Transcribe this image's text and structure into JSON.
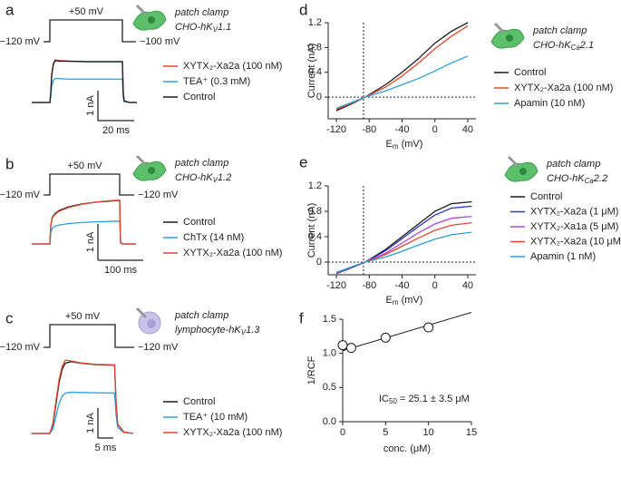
{
  "chart_data": [
    {
      "type": "trace",
      "label": "a",
      "protocol": {
        "step": "+50 mV",
        "hold": "−120 mV",
        "return": "−100 mV"
      },
      "method": "patch clamp",
      "cell": [
        "CHO-hK",
        "V",
        "1.1"
      ],
      "scalebar": {
        "y": {
          "value": 1,
          "label": "1 nA"
        },
        "x": {
          "value": 20,
          "label": "20 ms"
        }
      },
      "x": [
        -10,
        0,
        0.5,
        1,
        2,
        3,
        5,
        10,
        20,
        30,
        40,
        40.5,
        41,
        44,
        48
      ],
      "series": [
        {
          "name": "XYTX₂-Xa2a (100 nM)",
          "color": "#e8452c",
          "values": [
            0,
            0,
            0.3,
            0.95,
            1.32,
            1.42,
            1.4,
            1.38,
            1.37,
            1.37,
            1.37,
            0.3,
            0.05,
            0,
            0
          ]
        },
        {
          "name": "TEA⁺ (0.3 mM)",
          "color": "#2a9fe0",
          "values": [
            0,
            0,
            0.2,
            0.55,
            0.75,
            0.8,
            0.8,
            0.78,
            0.78,
            0.78,
            0.78,
            0.15,
            0.03,
            0,
            0
          ]
        },
        {
          "name": "Control",
          "color": "#1a1a1a",
          "values": [
            0,
            0,
            0.3,
            0.9,
            1.3,
            1.4,
            1.38,
            1.38,
            1.36,
            1.36,
            1.36,
            0.3,
            0.05,
            0,
            0
          ]
        }
      ]
    },
    {
      "type": "trace",
      "label": "b",
      "protocol": {
        "step": "+50 mV",
        "hold": "−120 mV",
        "return": "−120 mV"
      },
      "method": "patch clamp",
      "cell": [
        "CHO-hK",
        "V",
        "1.2"
      ],
      "scalebar": {
        "y": {
          "value": 1,
          "label": "1 nA"
        },
        "x": {
          "value": 100,
          "label": "100 ms"
        }
      },
      "x": [
        -40,
        0,
        2,
        5,
        10,
        20,
        40,
        70,
        100,
        130,
        154,
        156,
        160,
        190
      ],
      "series": [
        {
          "name": "Control",
          "color": "#1a1a1a",
          "values": [
            0,
            0,
            0.5,
            0.72,
            0.82,
            0.92,
            1.02,
            1.1,
            1.15,
            1.18,
            1.2,
            0.05,
            0,
            0
          ]
        },
        {
          "name": "ChTx (14 nM)",
          "color": "#2a9fe0",
          "values": [
            0,
            0,
            0.3,
            0.43,
            0.48,
            0.52,
            0.56,
            0.59,
            0.61,
            0.62,
            0.63,
            0.02,
            0,
            0
          ]
        },
        {
          "name": "XYTX₂-Xa2a (100 nM)",
          "color": "#e8452c",
          "values": [
            0,
            0,
            0.5,
            0.7,
            0.8,
            0.9,
            1.0,
            1.09,
            1.15,
            1.19,
            1.21,
            0.05,
            0,
            0
          ]
        }
      ]
    },
    {
      "type": "trace",
      "label": "c",
      "protocol": {
        "step": "+50 mV",
        "hold": "−120 mV",
        "return": "−120 mV"
      },
      "method": "patch clamp",
      "cell": [
        "lymphocyte-hK",
        "V",
        "1.3"
      ],
      "scalebar": {
        "y": {
          "value": 1,
          "label": "1 nA"
        },
        "x": {
          "value": 5,
          "label": "5 ms"
        }
      },
      "x": [
        -6,
        0,
        1,
        2,
        3,
        4,
        5,
        7,
        10,
        15,
        21,
        21.5,
        22,
        24,
        27
      ],
      "series": [
        {
          "name": "Control",
          "color": "#1a1a1a",
          "values": [
            0,
            0,
            0.3,
            1.0,
            1.7,
            2.15,
            2.35,
            2.4,
            2.35,
            2.3,
            2.28,
            1.0,
            0.3,
            0.05,
            0
          ]
        },
        {
          "name": "TEA⁺ (10 mM)",
          "color": "#2a9fe0",
          "values": [
            0,
            0,
            0.15,
            0.6,
            1.0,
            1.25,
            1.35,
            1.38,
            1.37,
            1.36,
            1.35,
            0.6,
            0.2,
            0.03,
            0
          ]
        },
        {
          "name": "XYTX₂-Xa2a (100 nM)",
          "color": "#e8452c",
          "values": [
            0,
            0,
            0.35,
            1.1,
            1.8,
            2.25,
            2.45,
            2.42,
            2.36,
            2.31,
            2.29,
            1.0,
            0.3,
            0.05,
            0
          ]
        }
      ]
    },
    {
      "type": "line",
      "label": "d",
      "method": "patch clamp",
      "cell": [
        "CHO-hK",
        "Ca",
        "2.1"
      ],
      "xlabel": [
        "E",
        "m",
        " (mV)"
      ],
      "ylabel": "Current (nA)",
      "xlim": [
        -130,
        50
      ],
      "ylim": [
        -0.35,
        1.2
      ],
      "xticks": [
        -120,
        -80,
        -40,
        0,
        40
      ],
      "yticks": [
        0,
        0.4,
        0.8,
        1.2
      ],
      "reference_x": -87,
      "reference_y": 0,
      "x": [
        -120,
        -100,
        -85,
        -60,
        -40,
        -20,
        0,
        20,
        40
      ],
      "series": [
        {
          "name": "Control",
          "color": "#1a1a1a",
          "values": [
            -0.22,
            -0.1,
            0,
            0.2,
            0.4,
            0.62,
            0.87,
            1.06,
            1.2
          ]
        },
        {
          "name": "XYTX₂-Xa2a (100 nM)",
          "color": "#e8452c",
          "values": [
            -0.2,
            -0.09,
            0,
            0.16,
            0.34,
            0.55,
            0.78,
            0.98,
            1.15
          ]
        },
        {
          "name": "Apamin (10 nM)",
          "color": "#2a9fe0",
          "values": [
            -0.18,
            -0.08,
            0,
            0.1,
            0.2,
            0.3,
            0.42,
            0.55,
            0.66
          ]
        }
      ]
    },
    {
      "type": "line",
      "label": "e",
      "method": "patch clamp",
      "cell": [
        "CHO-hK",
        "Ca",
        "2.2"
      ],
      "xlabel": [
        "E",
        "m",
        " (mV)"
      ],
      "ylabel": "Current (nA)",
      "xlim": [
        -130,
        50
      ],
      "ylim": [
        -0.2,
        1.2
      ],
      "xticks": [
        -120,
        -80,
        -40,
        0,
        40
      ],
      "yticks": [
        0,
        0.4,
        0.8,
        1.2
      ],
      "reference_x": -87,
      "reference_y": 0,
      "x": [
        -120,
        -100,
        -85,
        -60,
        -40,
        -20,
        0,
        20,
        45
      ],
      "series": [
        {
          "name": "Control",
          "color": "#1a1a1a",
          "values": [
            -0.18,
            -0.08,
            0,
            0.2,
            0.4,
            0.6,
            0.8,
            0.92,
            0.95
          ]
        },
        {
          "name": "XYTX₂-Xa2a (1 μM)",
          "color": "#2b35c8",
          "values": [
            -0.18,
            -0.08,
            0,
            0.18,
            0.37,
            0.56,
            0.74,
            0.85,
            0.88
          ]
        },
        {
          "name": "XYTX₂-Xa1a (5 μM)",
          "color": "#b044e0",
          "values": [
            -0.17,
            -0.07,
            0,
            0.14,
            0.3,
            0.46,
            0.6,
            0.69,
            0.72
          ]
        },
        {
          "name": "XYTX₂-Xa2a (10 μM)",
          "color": "#e8452c",
          "values": [
            -0.17,
            -0.07,
            0,
            0.12,
            0.25,
            0.38,
            0.5,
            0.58,
            0.62
          ]
        },
        {
          "name": "Apamin (1 nM)",
          "color": "#2a9fe0",
          "values": [
            -0.16,
            -0.07,
            0,
            0.08,
            0.17,
            0.27,
            0.36,
            0.43,
            0.47
          ]
        }
      ]
    },
    {
      "type": "scatter",
      "label": "f",
      "xlabel": "conc. (μM)",
      "ylabel": "1/RCF",
      "annotation": [
        "IC",
        "50",
        " = 25.1 ± 3.5 μM"
      ],
      "xlim": [
        0,
        15
      ],
      "ylim": [
        0,
        1.5
      ],
      "xticks": [
        0,
        5,
        10,
        15
      ],
      "yticks": [
        {
          "value": 0,
          "label": "0.0"
        },
        {
          "value": 0.5,
          "label": "0.5"
        },
        {
          "value": 1,
          "label": "1.0"
        },
        {
          "value": 1.5,
          "label": "1.5"
        }
      ],
      "x": [
        0,
        1,
        5,
        10
      ],
      "values": [
        1.12,
        1.08,
        1.23,
        1.38
      ],
      "color": "#1a1a1a",
      "fit": {
        "x": [
          0,
          15
        ],
        "values": [
          1.04,
          1.6
        ]
      }
    }
  ]
}
